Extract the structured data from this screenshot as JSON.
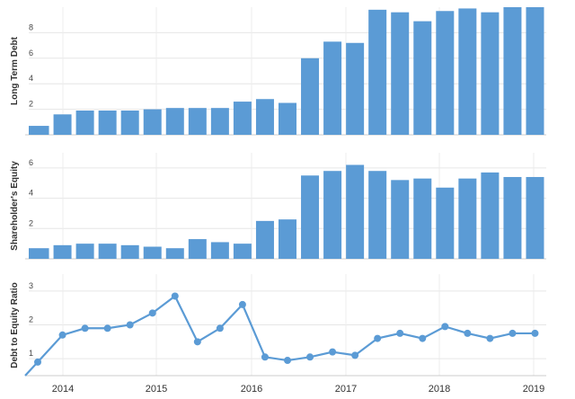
{
  "chart_data": [
    {
      "type": "bar",
      "ylabel": "Long Term Debt",
      "ylim": [
        0,
        10
      ],
      "yticks": [
        0,
        2,
        4,
        6,
        8
      ],
      "color": "#5b9bd5",
      "x": [
        "2013-09",
        "2013-12",
        "2014-03",
        "2014-06",
        "2014-09",
        "2014-12",
        "2015-03",
        "2015-06",
        "2015-09",
        "2015-12",
        "2016-03",
        "2016-06",
        "2016-09",
        "2016-12",
        "2017-03",
        "2017-06",
        "2017-09",
        "2017-12",
        "2018-03",
        "2018-06",
        "2018-09",
        "2018-12",
        "2019-03"
      ],
      "values": [
        0.7,
        1.6,
        1.9,
        1.9,
        1.9,
        2.0,
        2.1,
        2.1,
        2.1,
        2.6,
        2.8,
        2.5,
        6.0,
        7.3,
        7.2,
        9.8,
        9.6,
        8.9,
        9.7,
        9.9,
        9.6,
        10.0,
        10.0
      ]
    },
    {
      "type": "bar",
      "ylabel": "Shareholder's Equity",
      "ylim": [
        0,
        7
      ],
      "yticks": [
        0,
        2,
        4,
        6
      ],
      "color": "#5b9bd5",
      "x": [
        "2013-09",
        "2013-12",
        "2014-03",
        "2014-06",
        "2014-09",
        "2014-12",
        "2015-03",
        "2015-06",
        "2015-09",
        "2015-12",
        "2016-03",
        "2016-06",
        "2016-09",
        "2016-12",
        "2017-03",
        "2017-06",
        "2017-09",
        "2017-12",
        "2018-03",
        "2018-06",
        "2018-09",
        "2018-12",
        "2019-03"
      ],
      "values": [
        0.7,
        0.9,
        1.0,
        1.0,
        0.9,
        0.8,
        0.7,
        1.3,
        1.1,
        1.0,
        2.5,
        2.6,
        5.5,
        5.8,
        6.2,
        5.8,
        5.2,
        5.3,
        4.7,
        5.3,
        5.7,
        5.4,
        5.4
      ]
    },
    {
      "type": "line",
      "ylabel": "Debt to Equity Ratio",
      "ylim": [
        0.5,
        3.5
      ],
      "yticks": [
        1,
        2,
        3
      ],
      "color": "#5b9bd5",
      "x": [
        "2013-09",
        "2013-12",
        "2014-03",
        "2014-06",
        "2014-09",
        "2014-12",
        "2015-03",
        "2015-06",
        "2015-09",
        "2015-12",
        "2016-03",
        "2016-06",
        "2016-09",
        "2016-12",
        "2017-03",
        "2017-06",
        "2017-09",
        "2017-12",
        "2018-03",
        "2018-06",
        "2018-09",
        "2018-12",
        "2019-03"
      ],
      "values": [
        0.9,
        1.7,
        1.9,
        1.9,
        2.0,
        2.35,
        2.85,
        1.5,
        1.9,
        2.6,
        1.05,
        0.95,
        1.05,
        1.2,
        1.1,
        1.6,
        1.75,
        1.6,
        1.95,
        1.75,
        1.6,
        1.75,
        1.75
      ],
      "lead_in": 0.5
    }
  ],
  "x_axis": {
    "labels": [
      "2014",
      "2015",
      "2016",
      "2017",
      "2018",
      "2019"
    ]
  }
}
